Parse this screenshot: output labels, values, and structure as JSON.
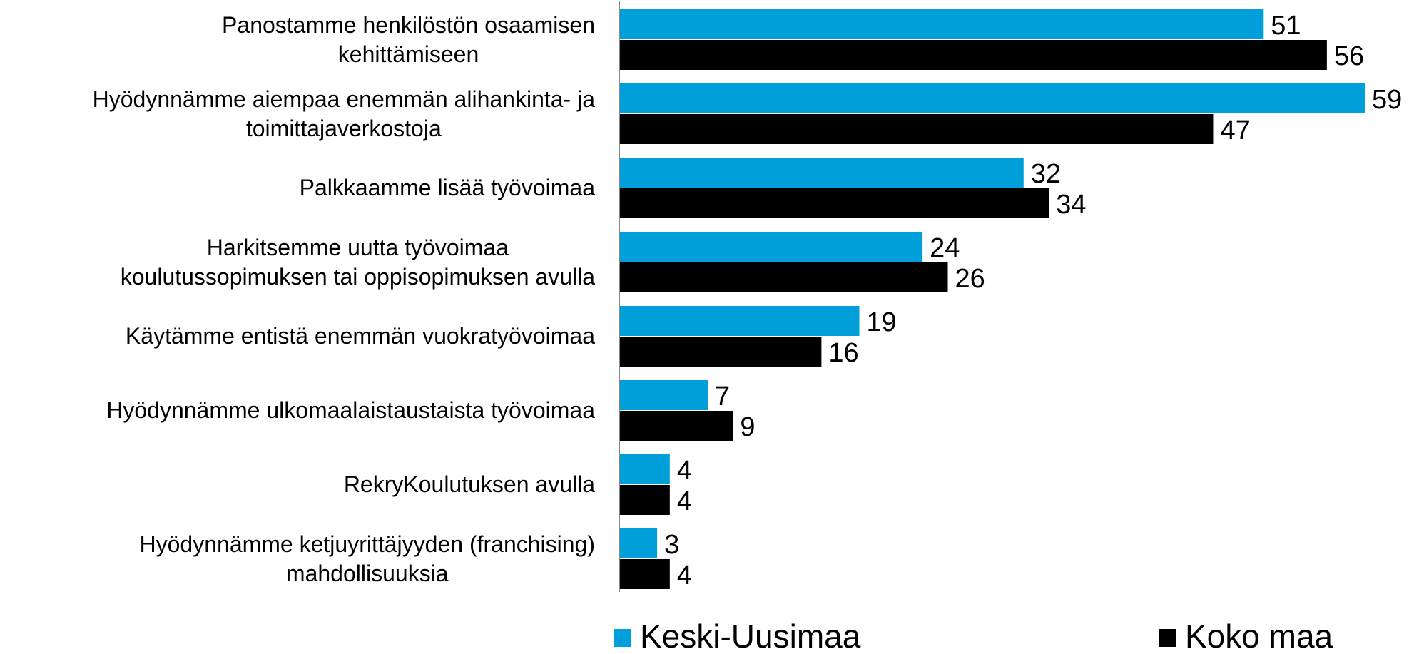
{
  "chart_data": {
    "type": "bar",
    "orientation": "horizontal",
    "categories": [
      "Panostamme henkilöstön  osaamisen\nkehittämiseen",
      "Hyödynnämme aiempaa enemmän alihankinta- ja\ntoimittajaverkostoja",
      "Palkkaamme lisää työvoimaa",
      "Harkitsemme uutta työvoimaa\nkoulutussopimuksen tai oppisopimuksen avulla",
      "Käytämme entistä enemmän vuokratyövoimaa",
      "Hyödynnämme ulkomaalaistaustaista työvoimaa",
      "RekryKoulutuksen avulla",
      "Hyödynnämme ketjuyrittäjyyden (franchising)\nmahdollisuuksia"
    ],
    "series": [
      {
        "name": "Keski-Uusimaa",
        "color": "#009fda",
        "values": [
          51,
          59,
          32,
          24,
          19,
          7,
          4,
          3
        ]
      },
      {
        "name": "Koko maa",
        "color": "#000000",
        "values": [
          56,
          47,
          34,
          26,
          16,
          9,
          4,
          4
        ]
      }
    ]
  }
}
